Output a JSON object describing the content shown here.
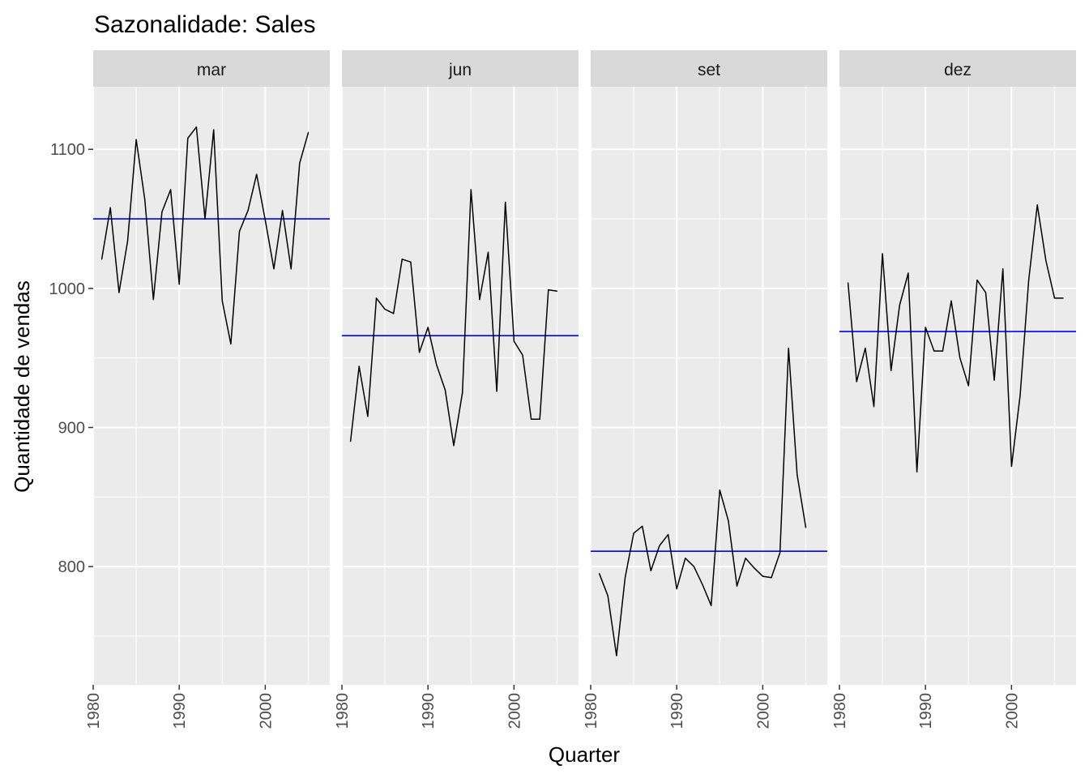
{
  "title": "Sazonalidade: Sales",
  "chart_data": {
    "type": "line",
    "title": "Sazonalidade: Sales",
    "xlabel": "Quarter",
    "ylabel": "Quantidade de vendas",
    "xlim": [
      1980,
      2007.5
    ],
    "ylim": [
      715,
      1145
    ],
    "x_ticks": [
      1980,
      1990,
      2000
    ],
    "y_ticks": [
      800,
      900,
      1000,
      1100
    ],
    "grid": true,
    "mean_line_color": "#0000ff",
    "line_color": "#000000",
    "years": [
      1981,
      1982,
      1983,
      1984,
      1985,
      1986,
      1987,
      1988,
      1989,
      1990,
      1991,
      1992,
      1993,
      1994,
      1995,
      1996,
      1997,
      1998,
      1999,
      2000,
      2001,
      2002,
      2003,
      2004,
      2005,
      2006
    ],
    "panels": [
      {
        "label": "mar",
        "mean": 1050,
        "x": [
          1981,
          1982,
          1983,
          1984,
          1985,
          1986,
          1987,
          1988,
          1989,
          1990,
          1991,
          1992,
          1993,
          1994,
          1995,
          1996,
          1997,
          1998,
          1999,
          2000,
          2001,
          2002,
          2003,
          2004,
          2005
        ],
        "values": [
          1021,
          1058,
          997,
          1034,
          1107,
          1064,
          992,
          1055,
          1071,
          1003,
          1108,
          1116,
          1050,
          1114,
          991,
          960,
          1041,
          1056,
          1082,
          1049,
          1014,
          1056,
          1014,
          1090,
          1112
        ]
      },
      {
        "label": "jun",
        "mean": 966,
        "x": [
          1981,
          1982,
          1983,
          1984,
          1985,
          1986,
          1987,
          1988,
          1989,
          1990,
          1991,
          1992,
          1993,
          1994,
          1995,
          1996,
          1997,
          1998,
          1999,
          2000,
          2001,
          2002,
          2003,
          2004,
          2005
        ],
        "values": [
          890,
          944,
          908,
          993,
          985,
          982,
          1021,
          1019,
          954,
          972,
          945,
          927,
          887,
          925,
          1071,
          992,
          1026,
          926,
          1062,
          962,
          952,
          906,
          906,
          999,
          998
        ]
      },
      {
        "label": "set",
        "mean": 811,
        "x": [
          1981,
          1982,
          1983,
          1984,
          1985,
          1986,
          1987,
          1988,
          1989,
          1990,
          1991,
          1992,
          1993,
          1994,
          1995,
          1996,
          1997,
          1998,
          1999,
          2000,
          2001,
          2002,
          2003,
          2004,
          2005
        ],
        "values": [
          795,
          779,
          736,
          792,
          824,
          829,
          797,
          815,
          823,
          784,
          806,
          800,
          787,
          772,
          855,
          833,
          786,
          806,
          799,
          793,
          792,
          810,
          957,
          866,
          828
        ]
      },
      {
        "label": "dez",
        "mean": 969,
        "x": [
          1981,
          1982,
          1983,
          1984,
          1985,
          1986,
          1987,
          1988,
          1989,
          1990,
          1991,
          1992,
          1993,
          1994,
          1995,
          1996,
          1997,
          1998,
          1999,
          2000,
          2001,
          2002,
          2003,
          2004,
          2005,
          2006
        ],
        "values": [
          1004,
          933,
          957,
          915,
          1025,
          941,
          988,
          1011,
          868,
          972,
          955,
          955,
          991,
          950,
          930,
          1006,
          997,
          934,
          1014,
          872,
          923,
          1006,
          1060,
          1020,
          993,
          993
        ]
      }
    ]
  }
}
